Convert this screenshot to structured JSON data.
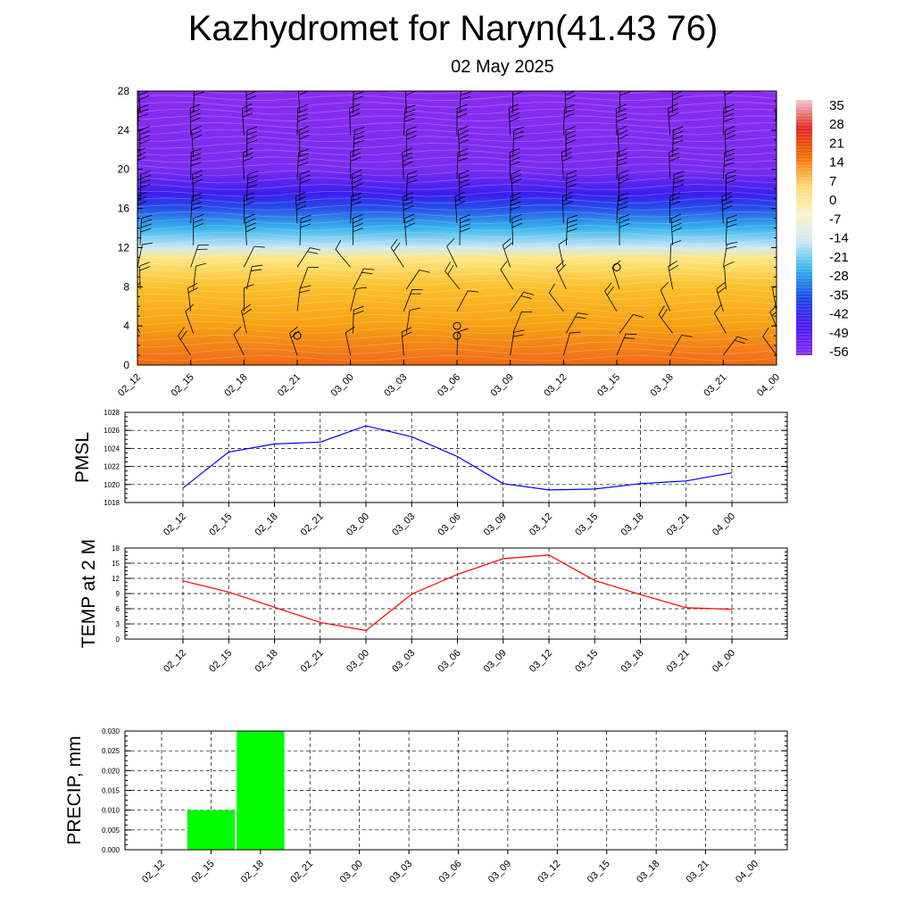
{
  "header": {
    "title": "Kazhydromet for Naryn(41.43 76)",
    "subtitle": "02 May 2025"
  },
  "chart_data": [
    {
      "type": "heatmap",
      "name": "temperature-height-section",
      "x_ticks": [
        "02_12",
        "02_15",
        "02_18",
        "02_21",
        "03_00",
        "03_03",
        "03_06",
        "03_09",
        "03_12",
        "03_15",
        "03_18",
        "03_21",
        "04_00"
      ],
      "y_ticks": [
        "0",
        "4",
        "8",
        "12",
        "16",
        "20",
        "24",
        "28"
      ],
      "ylim": [
        0,
        28
      ],
      "colorbar_labels": [
        "35",
        "28",
        "21",
        "14",
        "7",
        "0",
        "-7",
        "-14",
        "-21",
        "-28",
        "-35",
        "-42",
        "-49",
        "-56"
      ],
      "colorbar_colors": [
        "#f2c8c8",
        "#e32323",
        "#f07000",
        "#fcd870",
        "#fdf3c8",
        "#cde9f7",
        "#2fb2ec",
        "#1c45ea",
        "#4a18f0",
        "#8a2cf0"
      ],
      "layers": [
        {
          "height": 0,
          "color": "#f06818"
        },
        {
          "height": 4,
          "color": "#f7a012"
        },
        {
          "height": 8,
          "color": "#fcc02a"
        },
        {
          "height": 11,
          "color": "#fde888"
        },
        {
          "height": 12,
          "color": "#cde9f7"
        },
        {
          "height": 14,
          "color": "#36b4ec"
        },
        {
          "height": 16,
          "color": "#2450e8"
        },
        {
          "height": 17.5,
          "color": "#3b1ef0"
        },
        {
          "height": 20,
          "color": "#7a2df0"
        },
        {
          "height": 28,
          "color": "#8a2cf0"
        }
      ],
      "calm_circles": [
        {
          "x": 3,
          "height": 3
        },
        {
          "x": 6,
          "height": 3
        },
        {
          "x": 6,
          "height": 4
        },
        {
          "x": 9,
          "height": 10
        }
      ],
      "grid": false
    },
    {
      "type": "line",
      "ylabel": "PMSL",
      "categories": [
        "02_12",
        "02_15",
        "02_18",
        "02_21",
        "03_00",
        "03_03",
        "03_06",
        "03_09",
        "03_12",
        "03_15",
        "03_18",
        "03_21",
        "04_00"
      ],
      "y_ticks": [
        "1018",
        "1020",
        "1022",
        "1024",
        "1026",
        "1028"
      ],
      "values": [
        1019.6,
        1023.6,
        1024.5,
        1024.7,
        1026.5,
        1025.3,
        1023.1,
        1020.1,
        1019.4,
        1019.5,
        1020.1,
        1020.4,
        1021.3
      ],
      "ylim": [
        1018,
        1028
      ],
      "color": "#0000ff",
      "grid": true
    },
    {
      "type": "line",
      "ylabel": "TEMP at 2 M",
      "categories": [
        "02_12",
        "02_15",
        "02_18",
        "02_21",
        "03_00",
        "03_03",
        "03_06",
        "03_09",
        "03_12",
        "03_15",
        "03_18",
        "03_21",
        "04_00"
      ],
      "y_ticks": [
        "0",
        "3",
        "6",
        "9",
        "12",
        "15",
        "18"
      ],
      "values": [
        11.5,
        9.3,
        6.3,
        3.3,
        1.7,
        8.9,
        12.8,
        15.9,
        16.6,
        11.6,
        8.8,
        6.2,
        5.9
      ],
      "ylim": [
        0,
        18
      ],
      "color": "#ff0000",
      "grid": true
    },
    {
      "type": "bar",
      "ylabel": "PRECIP, mm",
      "categories": [
        "02_12",
        "02_15",
        "02_18",
        "02_21",
        "03_00",
        "03_03",
        "03_06",
        "03_09",
        "03_12",
        "03_15",
        "03_18",
        "03_21",
        "04_00"
      ],
      "y_ticks": [
        "0.000",
        "0.005",
        "0.010",
        "0.015",
        "0.020",
        "0.025",
        "0.030"
      ],
      "values": [
        0,
        0.01,
        0.03,
        0,
        0,
        0,
        0,
        0,
        0,
        0,
        0,
        0,
        0
      ],
      "ylim": [
        0,
        0.03
      ],
      "color": "#00ff00",
      "grid": true
    }
  ]
}
